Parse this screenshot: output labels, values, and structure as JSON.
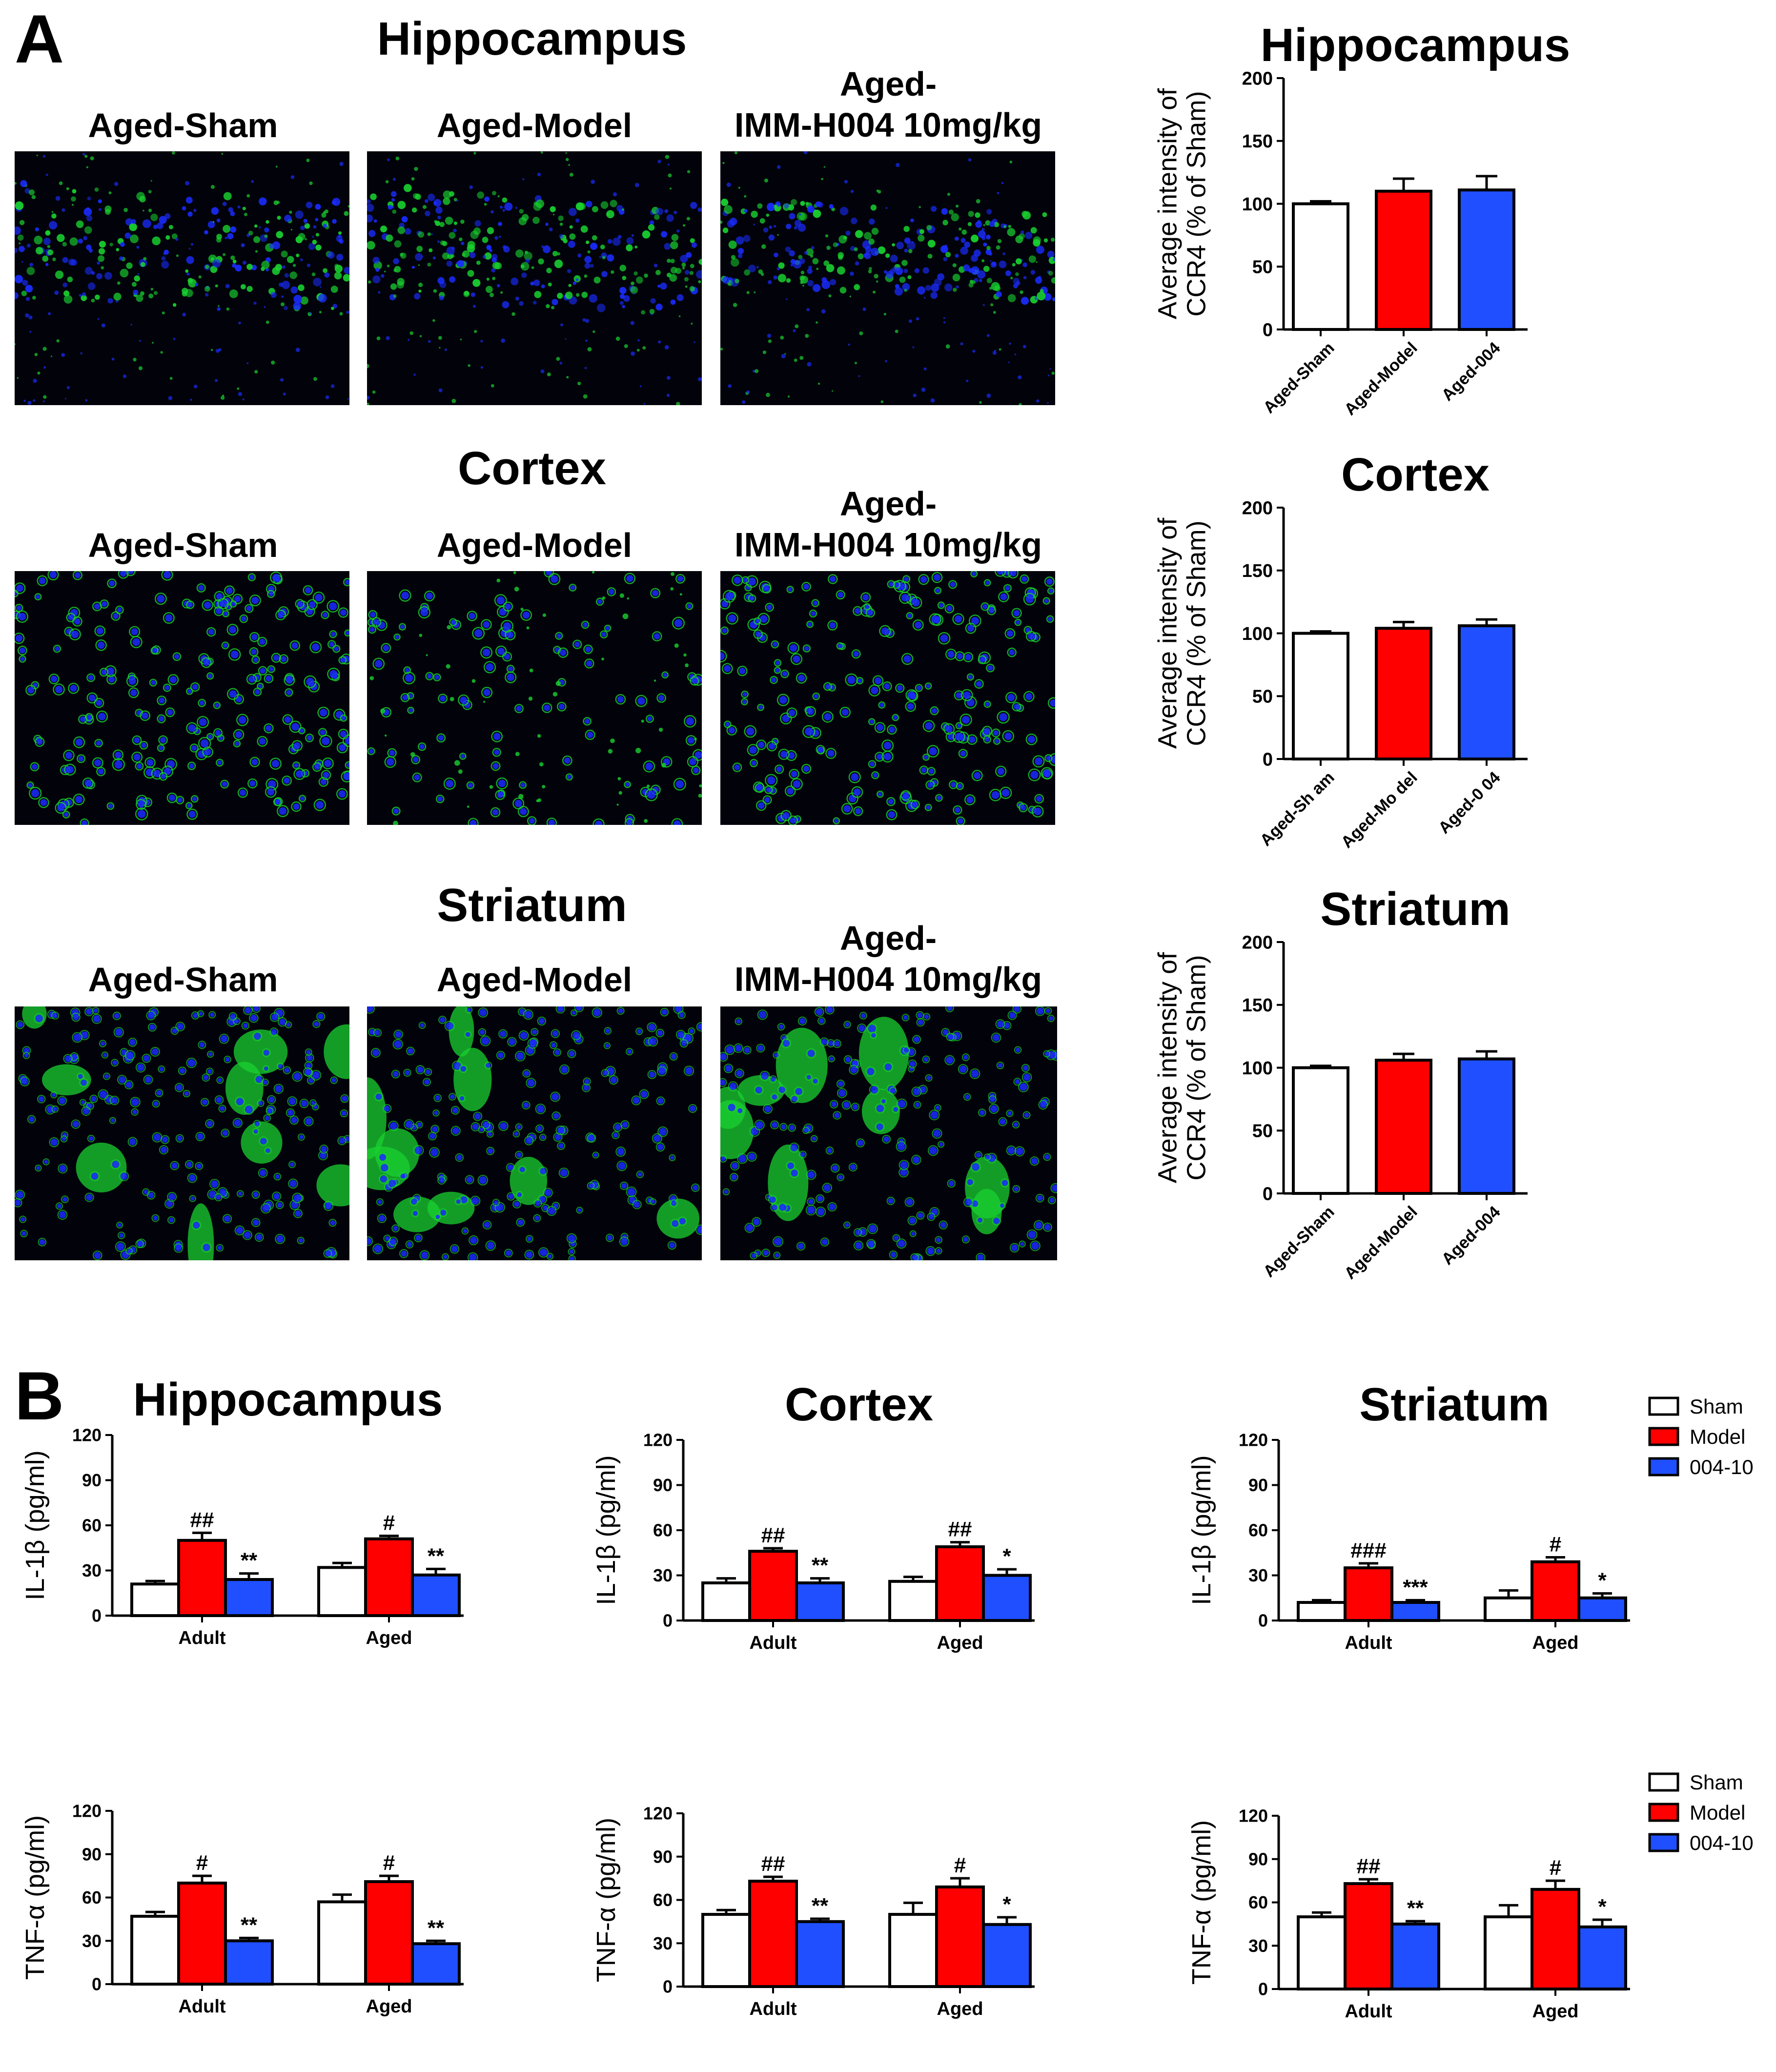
{
  "panels": {
    "A": "A",
    "B": "B"
  },
  "panelA": {
    "rows": [
      {
        "region": "Hippocampus",
        "labels": [
          "Aged-Sham",
          "Aged-Model",
          "Aged-\nIMM-H004 10mg/kg"
        ],
        "pattern": "hippo"
      },
      {
        "region": "Cortex",
        "labels": [
          "Aged-Sham",
          "Aged-Model",
          "Aged-\nIMM-H004 10mg/kg"
        ],
        "pattern": "cortex"
      },
      {
        "region": "Striatum",
        "labels": [
          "Aged-Sham",
          "Aged-Model",
          "Aged-\nIMM-H004 10mg/kg"
        ],
        "pattern": "striatum"
      }
    ]
  },
  "colors": {
    "sham": "#ffffff",
    "model": "#ff0000",
    "treat": "#1f4fff",
    "nuclei": "#1a2cff",
    "ccr4": "#19d230"
  },
  "chart_data": [
    {
      "type": "bar",
      "title": "Hippocampus",
      "ylabel": "Average intensity of\nCCR4 (% of Sham)",
      "categories": [
        "Aged-Sham",
        "Aged-Model",
        "Aged-004"
      ],
      "values": [
        100,
        110,
        111
      ],
      "errors": [
        2,
        10,
        11
      ],
      "ylim": [
        0,
        200
      ],
      "yticks": [
        0,
        50,
        100,
        150,
        200
      ]
    },
    {
      "type": "bar",
      "title": "Cortex",
      "ylabel": "Average intensity of\nCCR4 (% of Sham)",
      "categories": [
        "Aged-Sh am",
        "Aged-Mo del",
        "Aged-0 04"
      ],
      "values": [
        100,
        104,
        106
      ],
      "errors": [
        1.5,
        5,
        5
      ],
      "ylim": [
        0,
        200
      ],
      "yticks": [
        0,
        50,
        100,
        150,
        200
      ]
    },
    {
      "type": "bar",
      "title": "Striatum",
      "ylabel": "Average intensity of\nCCR4 (% of Sham)",
      "categories": [
        "Aged-Sham",
        "Aged-Model",
        "Aged-004"
      ],
      "values": [
        100,
        106,
        107
      ],
      "errors": [
        1.5,
        5,
        6
      ],
      "ylim": [
        0,
        200
      ],
      "yticks": [
        0,
        50,
        100,
        150,
        200
      ]
    },
    {
      "type": "bar",
      "title": "Hippocampus",
      "ylabel": "IL-1β (pg/ml)",
      "categories": [
        "Adult",
        "Aged"
      ],
      "ylim": [
        0,
        120
      ],
      "yticks": [
        0,
        30,
        60,
        90,
        120
      ],
      "series": [
        {
          "name": "Sham",
          "values": [
            21,
            32
          ],
          "errors": [
            2,
            3
          ],
          "marks": [
            "",
            ""
          ]
        },
        {
          "name": "Model",
          "values": [
            50,
            51
          ],
          "errors": [
            5,
            2
          ],
          "marks": [
            "##",
            "#"
          ]
        },
        {
          "name": "004-10",
          "values": [
            24,
            27
          ],
          "errors": [
            4,
            4
          ],
          "marks": [
            "**",
            "**"
          ]
        }
      ]
    },
    {
      "type": "bar",
      "title": "Cortex",
      "ylabel": "IL-1β (pg/ml)",
      "categories": [
        "Adult",
        "Aged"
      ],
      "ylim": [
        0,
        120
      ],
      "yticks": [
        0,
        30,
        60,
        90,
        120
      ],
      "series": [
        {
          "name": "Sham",
          "values": [
            25,
            26
          ],
          "errors": [
            3,
            3
          ],
          "marks": [
            "",
            ""
          ]
        },
        {
          "name": "Model",
          "values": [
            46,
            49
          ],
          "errors": [
            2,
            3
          ],
          "marks": [
            "##",
            "##"
          ]
        },
        {
          "name": "004-10",
          "values": [
            25,
            30
          ],
          "errors": [
            3,
            4
          ],
          "marks": [
            "**",
            "*"
          ]
        }
      ]
    },
    {
      "type": "bar",
      "title": "Striatum",
      "ylabel": "IL-1β (pg/ml)",
      "categories": [
        "Adult",
        "Aged"
      ],
      "ylim": [
        0,
        120
      ],
      "yticks": [
        0,
        30,
        60,
        90,
        120
      ],
      "legend": "top-right",
      "series": [
        {
          "name": "Sham",
          "values": [
            12,
            15
          ],
          "errors": [
            1.5,
            5
          ],
          "marks": [
            "",
            ""
          ]
        },
        {
          "name": "Model",
          "values": [
            35,
            39
          ],
          "errors": [
            3,
            3
          ],
          "marks": [
            "###",
            "#"
          ]
        },
        {
          "name": "004-10",
          "values": [
            12,
            15
          ],
          "errors": [
            1.5,
            3
          ],
          "marks": [
            "***",
            "*"
          ]
        }
      ]
    },
    {
      "type": "bar",
      "title": "",
      "ylabel": "TNF-α (pg/ml)",
      "categories": [
        "Adult",
        "Aged"
      ],
      "ylim": [
        0,
        120
      ],
      "yticks": [
        0,
        30,
        60,
        90,
        120
      ],
      "series": [
        {
          "name": "Sham",
          "values": [
            47,
            57
          ],
          "errors": [
            3,
            5
          ],
          "marks": [
            "",
            ""
          ]
        },
        {
          "name": "Model",
          "values": [
            70,
            71
          ],
          "errors": [
            5,
            4
          ],
          "marks": [
            "#",
            "#"
          ]
        },
        {
          "name": "004-10",
          "values": [
            30,
            28
          ],
          "errors": [
            2,
            2
          ],
          "marks": [
            "**",
            "**"
          ]
        }
      ]
    },
    {
      "type": "bar",
      "title": "",
      "ylabel": "TNF-α (pg/ml)",
      "categories": [
        "Adult",
        "Aged"
      ],
      "ylim": [
        0,
        120
      ],
      "yticks": [
        0,
        30,
        60,
        90,
        120
      ],
      "series": [
        {
          "name": "Sham",
          "values": [
            50,
            50
          ],
          "errors": [
            3,
            8
          ],
          "marks": [
            "",
            ""
          ]
        },
        {
          "name": "Model",
          "values": [
            73,
            69
          ],
          "errors": [
            3,
            6
          ],
          "marks": [
            "##",
            "#"
          ]
        },
        {
          "name": "004-10",
          "values": [
            45,
            43
          ],
          "errors": [
            2,
            5
          ],
          "marks": [
            "**",
            "*"
          ]
        }
      ]
    },
    {
      "type": "bar",
      "title": "",
      "ylabel": "TNF-α (pg/ml)",
      "categories": [
        "Adult",
        "Aged"
      ],
      "ylim": [
        0,
        120
      ],
      "yticks": [
        0,
        30,
        60,
        90,
        120
      ],
      "legend": "top-right",
      "series": [
        {
          "name": "Sham",
          "values": [
            50,
            50
          ],
          "errors": [
            3,
            8
          ],
          "marks": [
            "",
            ""
          ]
        },
        {
          "name": "Model",
          "values": [
            73,
            69
          ],
          "errors": [
            3,
            6
          ],
          "marks": [
            "##",
            "#"
          ]
        },
        {
          "name": "004-10",
          "values": [
            45,
            43
          ],
          "errors": [
            2,
            5
          ],
          "marks": [
            "**",
            "*"
          ]
        }
      ]
    }
  ]
}
